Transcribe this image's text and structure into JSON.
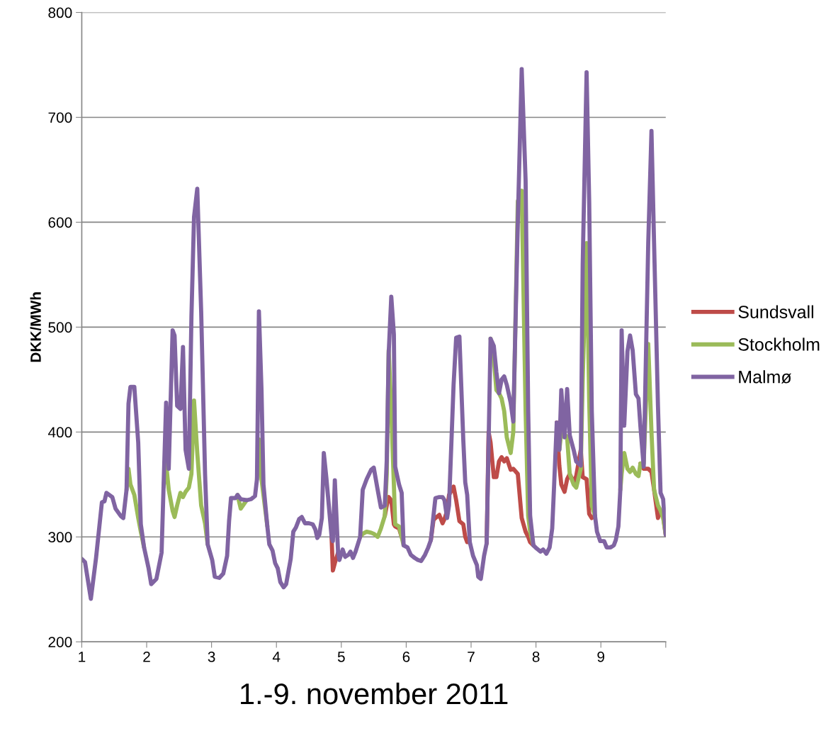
{
  "chart_data": {
    "type": "line",
    "xlabel": "1.-9. november 2011",
    "ylabel": "DKK/MWh",
    "x": [
      1.0,
      1.05,
      1.14,
      1.22,
      1.31,
      1.35,
      1.38,
      1.47,
      1.52,
      1.6,
      1.64,
      1.69,
      1.72,
      1.75,
      1.81,
      1.87,
      1.91,
      1.96,
      2.03,
      2.07,
      2.15,
      2.23,
      2.26,
      2.3,
      2.34,
      2.4,
      2.43,
      2.47,
      2.52,
      2.56,
      2.6,
      2.65,
      2.69,
      2.73,
      2.78,
      2.84,
      2.9,
      2.94,
      3.01,
      3.05,
      3.12,
      3.18,
      3.24,
      3.27,
      3.3,
      3.37,
      3.4,
      3.45,
      3.54,
      3.61,
      3.67,
      3.7,
      3.73,
      3.77,
      3.8,
      3.86,
      3.89,
      3.94,
      3.98,
      4.02,
      4.06,
      4.11,
      4.15,
      4.22,
      4.26,
      4.3,
      4.35,
      4.39,
      4.44,
      4.5,
      4.56,
      4.6,
      4.63,
      4.66,
      4.7,
      4.73,
      4.77,
      4.85,
      4.87,
      4.9,
      4.95,
      4.97,
      5.02,
      5.06,
      5.11,
      5.14,
      5.18,
      5.22,
      5.29,
      5.33,
      5.39,
      5.46,
      5.5,
      5.56,
      5.61,
      5.67,
      5.7,
      5.73,
      5.77,
      5.81,
      5.83,
      5.89,
      5.93,
      5.96,
      6.02,
      6.07,
      6.13,
      6.18,
      6.23,
      6.29,
      6.34,
      6.38,
      6.42,
      6.45,
      6.51,
      6.56,
      6.59,
      6.63,
      6.66,
      6.73,
      6.77,
      6.82,
      6.88,
      6.91,
      6.94,
      6.98,
      7.03,
      7.09,
      7.11,
      7.15,
      7.2,
      7.24,
      7.27,
      7.3,
      7.35,
      7.39,
      7.43,
      7.47,
      7.51,
      7.55,
      7.61,
      7.65,
      7.72,
      7.78,
      7.84,
      7.88,
      7.91,
      7.96,
      8.01,
      8.07,
      8.11,
      8.16,
      8.21,
      8.25,
      8.28,
      8.32,
      8.36,
      8.39,
      8.44,
      8.48,
      8.52,
      8.58,
      8.62,
      8.69,
      8.72,
      8.78,
      8.82,
      8.86,
      8.91,
      8.94,
      8.99,
      9.05,
      9.09,
      9.15,
      9.2,
      9.23,
      9.27,
      9.3,
      9.32,
      9.36,
      9.41,
      9.45,
      9.49,
      9.54,
      9.58,
      9.61,
      9.66,
      9.73,
      9.78,
      9.82,
      9.88,
      9.92,
      9.96,
      10.0
    ],
    "series": [
      {
        "name": "Sundsvall",
        "color": "#be4b48",
        "values": [
          null,
          null,
          null,
          null,
          null,
          null,
          null,
          null,
          null,
          null,
          null,
          null,
          null,
          null,
          null,
          null,
          null,
          null,
          null,
          null,
          null,
          null,
          null,
          null,
          null,
          null,
          null,
          null,
          null,
          null,
          null,
          null,
          null,
          null,
          null,
          null,
          null,
          null,
          null,
          null,
          null,
          null,
          null,
          null,
          null,
          null,
          null,
          null,
          null,
          null,
          null,
          null,
          null,
          null,
          null,
          null,
          null,
          null,
          null,
          null,
          null,
          null,
          null,
          null,
          null,
          null,
          null,
          null,
          null,
          null,
          null,
          null,
          null,
          null,
          null,
          null,
          null,
          300,
          268,
          275,
          285,
          null,
          null,
          null,
          null,
          null,
          null,
          null,
          null,
          null,
          null,
          null,
          null,
          null,
          null,
          320,
          330,
          338,
          335,
          312,
          310,
          308,
          300,
          null,
          null,
          null,
          null,
          null,
          null,
          null,
          null,
          297,
          316,
          318,
          321,
          313,
          317,
          325,
          340,
          348,
          335,
          315,
          312,
          300,
          295,
          295,
          null,
          null,
          null,
          null,
          null,
          294,
          400,
          390,
          357,
          357,
          372,
          376,
          372,
          375,
          364,
          365,
          360,
          318,
          305,
          300,
          295,
          292,
          null,
          null,
          null,
          null,
          null,
          null,
          null,
          409,
          368,
          350,
          343,
          355,
          360,
          352,
          358,
          383,
          357,
          355,
          322,
          318,
          320,
          null,
          null,
          null,
          null,
          null,
          null,
          null,
          null,
          null,
          null,
          null,
          null,
          null,
          null,
          null,
          null,
          370,
          365,
          365,
          362,
          345,
          318,
          325,
          320,
          302
        ]
      },
      {
        "name": "Stockholm",
        "color": "#9bbb59",
        "values": [
          null,
          null,
          null,
          null,
          null,
          null,
          null,
          null,
          null,
          null,
          null,
          345,
          365,
          350,
          340,
          318,
          305,
          290,
          null,
          null,
          null,
          null,
          347,
          370,
          345,
          325,
          319,
          330,
          342,
          338,
          343,
          347,
          360,
          430,
          380,
          330,
          313,
          293,
          null,
          null,
          null,
          null,
          null,
          null,
          null,
          null,
          340,
          327,
          335,
          null,
          null,
          355,
          393,
          355,
          340,
          310,
          null,
          null,
          null,
          null,
          null,
          null,
          null,
          null,
          null,
          null,
          null,
          null,
          null,
          null,
          null,
          null,
          null,
          null,
          null,
          null,
          null,
          null,
          null,
          null,
          null,
          null,
          null,
          null,
          null,
          null,
          null,
          null,
          300,
          303,
          305,
          304,
          303,
          300,
          308,
          320,
          360,
          478,
          420,
          350,
          312,
          310,
          300,
          292,
          null,
          null,
          null,
          null,
          null,
          null,
          null,
          null,
          null,
          null,
          null,
          null,
          null,
          null,
          null,
          null,
          null,
          null,
          null,
          null,
          null,
          null,
          null,
          null,
          null,
          null,
          null,
          null,
          null,
          489,
          470,
          440,
          437,
          432,
          420,
          395,
          380,
          400,
          620,
          630,
          420,
          320,
          305,
          292,
          null,
          null,
          null,
          null,
          null,
          null,
          null,
          null,
          383,
          400,
          398,
          395,
          360,
          350,
          347,
          365,
          450,
          580,
          430,
          330,
          320,
          null,
          null,
          null,
          null,
          null,
          null,
          null,
          null,
          345,
          360,
          380,
          365,
          362,
          366,
          360,
          358,
          370,
          370,
          484,
          400,
          345,
          330,
          325,
          318,
          302
        ]
      },
      {
        "name": "Malmø",
        "color": "#8064a2",
        "values": [
          279,
          276,
          241,
          280,
          333,
          334,
          342,
          338,
          327,
          320,
          318,
          345,
          427,
          443,
          443,
          390,
          312,
          290,
          270,
          255,
          260,
          285,
          347,
          428,
          365,
          497,
          492,
          425,
          422,
          481,
          383,
          365,
          510,
          605,
          632,
          515,
          360,
          293,
          278,
          262,
          261,
          265,
          282,
          315,
          337,
          337,
          340,
          336,
          335,
          336,
          339,
          355,
          515,
          440,
          350,
          310,
          293,
          287,
          275,
          270,
          257,
          252,
          255,
          279,
          305,
          309,
          317,
          319,
          313,
          313,
          312,
          307,
          299,
          302,
          318,
          380,
          356,
          300,
          296,
          354,
          285,
          278,
          288,
          281,
          283,
          286,
          280,
          286,
          300,
          345,
          355,
          364,
          366,
          345,
          328,
          330,
          373,
          475,
          529,
          493,
          367,
          350,
          342,
          292,
          290,
          283,
          280,
          278,
          277,
          283,
          290,
          297,
          320,
          337,
          338,
          338,
          335,
          318,
          330,
          445,
          490,
          491,
          392,
          352,
          340,
          295,
          282,
          273,
          262,
          260,
          282,
          294,
          390,
          489,
          482,
          457,
          437,
          450,
          453,
          445,
          428,
          410,
          600,
          746,
          640,
          420,
          320,
          292,
          289,
          286,
          288,
          284,
          290,
          308,
          350,
          409,
          383,
          440,
          395,
          441,
          397,
          383,
          372,
          368,
          560,
          743,
          620,
          420,
          320,
          305,
          296,
          296,
          290,
          290,
          292,
          297,
          310,
          345,
          497,
          406,
          477,
          492,
          478,
          436,
          432,
          405,
          367,
          580,
          687,
          580,
          425,
          342,
          336,
          302
        ]
      }
    ],
    "xlim": [
      1,
      10
    ],
    "xticks": [
      1,
      2,
      3,
      4,
      5,
      6,
      7,
      8,
      9,
      {
        "value": 10,
        "label": null
      }
    ],
    "ylim": [
      200,
      800
    ],
    "yticks": [
      200,
      300,
      400,
      500,
      600,
      700,
      800
    ],
    "grid": "y",
    "legend": "right",
    "marker": "none",
    "line_style": "solid"
  }
}
